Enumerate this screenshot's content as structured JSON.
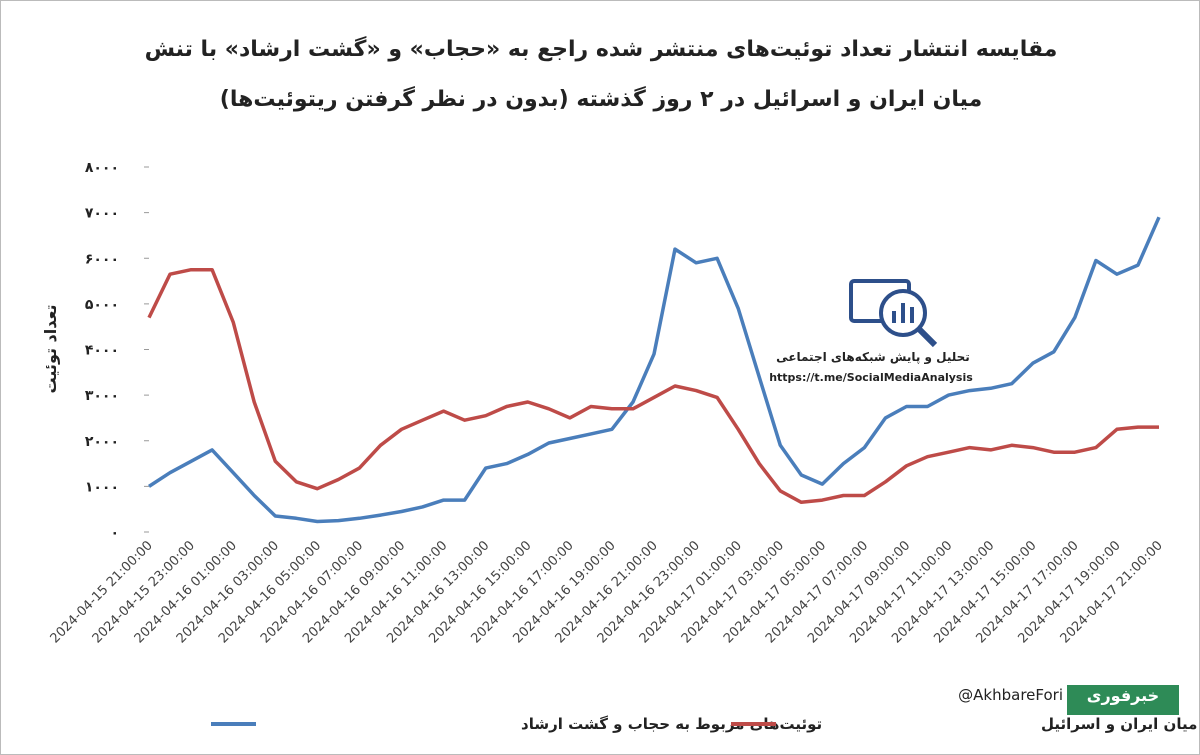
{
  "chart_data": {
    "type": "line",
    "title_lines": [
      "مقایسه انتشار تعداد توئیت‌های منتشر شده راجع به «حجاب» و «گشت ارشاد» با تنش",
      "میان ایران و اسرائیل در ۲ روز گذشته (بدون در نظر گرفتن ریتوئیت‌ها)"
    ],
    "ylabel": "تعداد توئیت",
    "categories": [
      "2024-04-15 21:00:00",
      null,
      "2024-04-15 23:00:00",
      null,
      "2024-04-16 01:00:00",
      null,
      "2024-04-16 03:00:00",
      null,
      "2024-04-16 05:00:00",
      null,
      "2024-04-16 07:00:00",
      null,
      "2024-04-16 09:00:00",
      null,
      "2024-04-16 11:00:00",
      null,
      "2024-04-16 13:00:00",
      null,
      "2024-04-16 15:00:00",
      null,
      "2024-04-16 17:00:00",
      null,
      "2024-04-16 19:00:00",
      null,
      "2024-04-16 21:00:00",
      null,
      "2024-04-16 23:00:00",
      null,
      "2024-04-17 01:00:00",
      null,
      "2024-04-17 03:00:00",
      null,
      "2024-04-17 05:00:00",
      null,
      "2024-04-17 07:00:00",
      null,
      "2024-04-17 09:00:00",
      null,
      "2024-04-17 11:00:00",
      null,
      "2024-04-17 13:00:00",
      null,
      "2024-04-17 15:00:00",
      null,
      "2024-04-17 17:00:00",
      null,
      "2024-04-17 19:00:00",
      null,
      "2024-04-17 21:00:00"
    ],
    "series": [
      {
        "name": "توئیت‌های مربوط به حجاب و گشت ارشاد",
        "color": "#4a7ebb",
        "values": [
          1000,
          1300,
          1550,
          1800,
          1300,
          800,
          350,
          300,
          230,
          250,
          300,
          370,
          450,
          550,
          700,
          700,
          1400,
          1500,
          1700,
          1950,
          2050,
          2150,
          2250,
          2850,
          3900,
          6200,
          5900,
          6000,
          4900,
          3400,
          1900,
          1250,
          1050,
          1500,
          1850,
          2500,
          2750,
          2750,
          3000,
          3100,
          3150,
          3250,
          3700,
          3950,
          4700,
          5950,
          5650,
          5850,
          6900
        ]
      },
      {
        "name": "توئیت‌های مربوط به تنش میان ایران و اسرائیل",
        "color": "#be4b48",
        "values": [
          4700,
          5650,
          5750,
          5750,
          4600,
          2850,
          1550,
          1100,
          950,
          1150,
          1400,
          1900,
          2250,
          2450,
          2650,
          2450,
          2550,
          2750,
          2850,
          2700,
          2500,
          2750,
          2700,
          2700,
          2950,
          3200,
          3100,
          2950,
          2250,
          1500,
          900,
          650,
          700,
          800,
          800,
          1100,
          1450,
          1650,
          1750,
          1850,
          1800,
          1900,
          1850,
          1750,
          1750,
          1850,
          2250,
          2300,
          2300
        ]
      }
    ],
    "ylim": [
      0,
      8000
    ],
    "yticks": [
      {
        "value": 0,
        "label": "۰"
      },
      {
        "value": 1000,
        "label": "۱۰۰۰"
      },
      {
        "value": 2000,
        "label": "۲۰۰۰"
      },
      {
        "value": 3000,
        "label": "۳۰۰۰"
      },
      {
        "value": 4000,
        "label": "۴۰۰۰"
      },
      {
        "value": 5000,
        "label": "۵۰۰۰"
      },
      {
        "value": 6000,
        "label": "۶۰۰۰"
      },
      {
        "value": 7000,
        "label": "۷۰۰۰"
      },
      {
        "value": 8000,
        "label": "۸۰۰۰"
      }
    ],
    "grid": false,
    "annotations": [
      "تحلیل و پایش شبکه‌های اجتماعی",
      "https://t.me/SocialMediaAnalysis",
      "@AkhbareFori",
      "خبرفوری"
    ]
  }
}
